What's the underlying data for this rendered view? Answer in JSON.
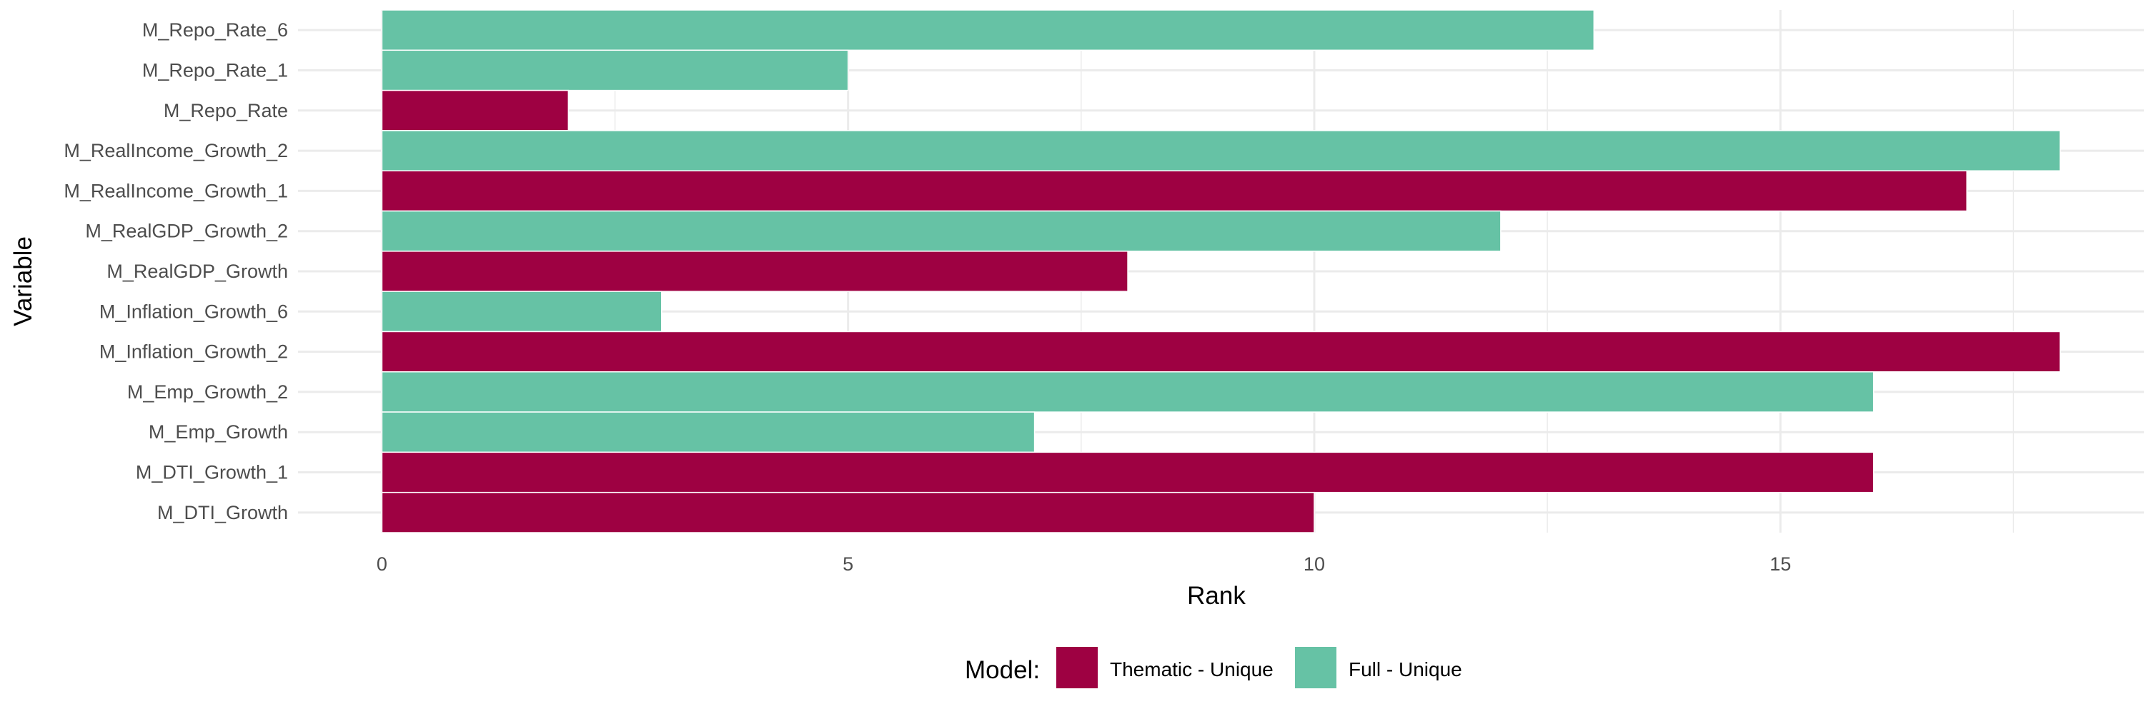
{
  "chart_data": {
    "type": "bar",
    "orientation": "horizontal",
    "xlabel": "Rank",
    "ylabel": "Variable",
    "xlim": [
      -0.9,
      18.9
    ],
    "xticks": [
      0,
      5,
      10,
      15
    ],
    "grid": true,
    "legend": {
      "title": "Model:",
      "position": "bottom",
      "entries": [
        {
          "label": "Thematic - Unique",
          "color": "#9E0142"
        },
        {
          "label": "Full - Unique",
          "color": "#66C2A5"
        }
      ]
    },
    "colors": {
      "Thematic - Unique": "#9E0142",
      "Full - Unique": "#66C2A5"
    },
    "bars": [
      {
        "category": "M_Repo_Rate_6",
        "value": 13,
        "model": "Full - Unique"
      },
      {
        "category": "M_Repo_Rate_1",
        "value": 5,
        "model": "Full - Unique"
      },
      {
        "category": "M_Repo_Rate",
        "value": 2,
        "model": "Thematic - Unique"
      },
      {
        "category": "M_RealIncome_Growth_2",
        "value": 18,
        "model": "Full - Unique"
      },
      {
        "category": "M_RealIncome_Growth_1",
        "value": 17,
        "model": "Thematic - Unique"
      },
      {
        "category": "M_RealGDP_Growth_2",
        "value": 12,
        "model": "Full - Unique"
      },
      {
        "category": "M_RealGDP_Growth",
        "value": 8,
        "model": "Thematic - Unique"
      },
      {
        "category": "M_Inflation_Growth_6",
        "value": 3,
        "model": "Full - Unique"
      },
      {
        "category": "M_Inflation_Growth_2",
        "value": 18,
        "model": "Thematic - Unique"
      },
      {
        "category": "M_Emp_Growth_2",
        "value": 16,
        "model": "Full - Unique"
      },
      {
        "category": "M_Emp_Growth",
        "value": 7,
        "model": "Full - Unique"
      },
      {
        "category": "M_DTI_Growth_1",
        "value": 16,
        "model": "Thematic - Unique"
      },
      {
        "category": "M_DTI_Growth",
        "value": 10,
        "model": "Thematic - Unique"
      }
    ]
  }
}
